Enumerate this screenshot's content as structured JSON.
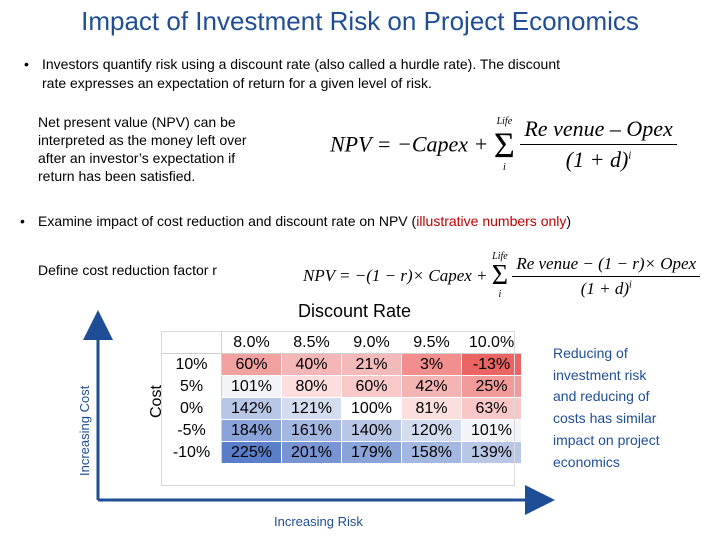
{
  "title": "Impact of Investment Risk on Project Economics",
  "bullet1": {
    "line1": "Investors  quantify risk using a discount rate (also called a hurdle rate). The discount",
    "line2": "rate expresses an expectation of return for a given level of risk."
  },
  "npv_desc": {
    "line1": "Net present value (NPV) can be",
    "line2": "interpreted as the money left over",
    "line3": "after an investor’s expectation if",
    "line4": "return has been satisfied."
  },
  "formula1": {
    "lhs": "NPV = −Capex +",
    "sum_upper": "Life",
    "sum_lower": "i",
    "numerator": "Re venue – Opex",
    "denominator": "(1 + d)",
    "exponent": "i"
  },
  "bullet2": {
    "prefix": "Examine impact of cost reduction and discount rate on NPV (",
    "highlight": "illustrative numbers only",
    "suffix": ")"
  },
  "define": "Define cost reduction factor r",
  "formula2": {
    "lhs": "NPV = −(1 − r)× Capex +",
    "sum_upper": "Life",
    "sum_lower": "i",
    "numerator": "Re venue − (1 − r)× Opex",
    "denominator": "(1 + d)",
    "exponent": "i"
  },
  "discount_rate_label": "Discount Rate",
  "cost_label": "Cost",
  "increasing_cost": "Increasing Cost",
  "increasing_risk": "Increasing Risk",
  "side_note": {
    "line1": "Reducing of",
    "line2": "investment risk",
    "line3": "and reducing of",
    "line4": "costs has similar",
    "line5": "impact on project",
    "line6": "economics"
  },
  "table": {
    "columns": [
      "8.0%",
      "8.5%",
      "9.0%",
      "9.5%",
      "10.0%"
    ],
    "rows": [
      {
        "label": "10%",
        "cells": [
          "60%",
          "40%",
          "21%",
          "3%",
          "-13%"
        ],
        "colors": [
          "#f2a1a1",
          "#f4b6b6",
          "#f4b9b9",
          "#f28e8e",
          "#ea6464"
        ]
      },
      {
        "label": "5%",
        "cells": [
          "101%",
          "80%",
          "60%",
          "42%",
          "25%"
        ],
        "colors": [
          "#f2f4f8",
          "#fcdede",
          "#f8c9c9",
          "#f5b4b4",
          "#f29a9a"
        ]
      },
      {
        "label": "0%",
        "cells": [
          "142%",
          "121%",
          "100%",
          "81%",
          "63%"
        ],
        "colors": [
          "#b8c7e6",
          "#d3ddef",
          "#ffffff",
          "#fbdede",
          "#f8c8c8"
        ]
      },
      {
        "label": "-5%",
        "cells": [
          "184%",
          "161%",
          "140%",
          "120%",
          "101%"
        ],
        "colors": [
          "#8aa3d8",
          "#a4b7e0",
          "#b8c7e6",
          "#d3ddef",
          "#f2f4f8"
        ]
      },
      {
        "label": "-10%",
        "cells": [
          "225%",
          "201%",
          "179%",
          "158%",
          "139%"
        ],
        "colors": [
          "#5b7ec9",
          "#7894d2",
          "#8aa3d8",
          "#a4b7e0",
          "#b8c7e6"
        ]
      }
    ]
  }
}
